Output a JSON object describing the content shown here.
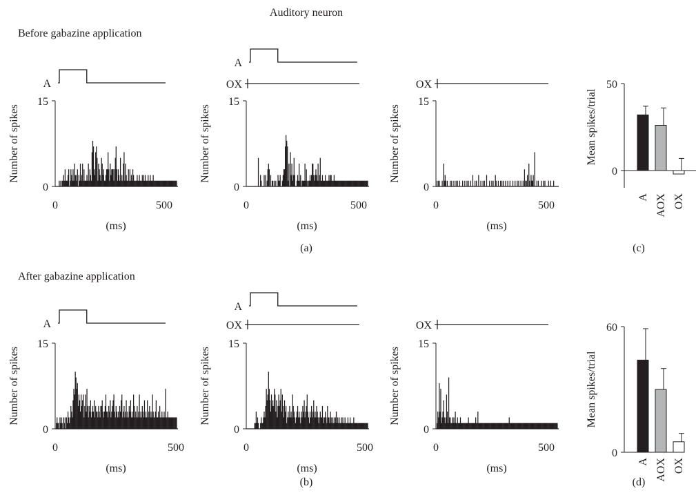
{
  "figure": {
    "title": "Auditory neuron",
    "row_titles": [
      "Before gabazine application",
      "After gabazine application"
    ],
    "panel_labels": [
      "(a)",
      "(c)",
      "(b)",
      "(d)"
    ]
  },
  "chart_data": [
    {
      "id": "a1",
      "type": "bar",
      "row": "Before gabazine application",
      "panel": "(a)",
      "stimulus_lines": [
        "A"
      ],
      "xlabel": "(ms)",
      "ylabel": "Number of spikes",
      "xlim": [
        0,
        500
      ],
      "ylim": [
        0,
        15
      ],
      "xticks": [
        0,
        500
      ],
      "yticks": [
        0,
        15
      ],
      "bin_ms": 3,
      "values": [
        0,
        0,
        0,
        0,
        0,
        1,
        0,
        1,
        0,
        1,
        1,
        2,
        1,
        3,
        1,
        1,
        1,
        2,
        3,
        0,
        1,
        3,
        2,
        1,
        3,
        1,
        4,
        2,
        2,
        1,
        3,
        0,
        2,
        1,
        4,
        1,
        2,
        4,
        1,
        3,
        1,
        1,
        1,
        2,
        1,
        4,
        1,
        3,
        2,
        1,
        6,
        8,
        7,
        3,
        2,
        6,
        7,
        5,
        1,
        4,
        3,
        2,
        1,
        5,
        4,
        2,
        3,
        1,
        1,
        2,
        3,
        3,
        6,
        3,
        1,
        4,
        2,
        3,
        3,
        3,
        1,
        3,
        5,
        7,
        3,
        1,
        3,
        2,
        1,
        5,
        1,
        2,
        1,
        4,
        6,
        1,
        4,
        2,
        1,
        1,
        3,
        1,
        3,
        1,
        2,
        1,
        3,
        2,
        1,
        1,
        1,
        1,
        2,
        1,
        1,
        2,
        1,
        1,
        1,
        2,
        1,
        2,
        1,
        2,
        1,
        1,
        1,
        2,
        1,
        1,
        2,
        1,
        1,
        1,
        2,
        1,
        1,
        1,
        1,
        1,
        1,
        1,
        1,
        1,
        1,
        1,
        1,
        1,
        1,
        1,
        1,
        1,
        1,
        1,
        1,
        1,
        1,
        1,
        1,
        1,
        1,
        1,
        1,
        1,
        1,
        1,
        1
      ]
    },
    {
      "id": "a2",
      "type": "bar",
      "row": "Before gabazine application",
      "panel": "(a)",
      "stimulus_lines": [
        "A",
        "OX"
      ],
      "xlabel": "(ms)",
      "ylabel": "Number of spikes",
      "xlim": [
        0,
        500
      ],
      "ylim": [
        0,
        15
      ],
      "xticks": [
        0,
        500
      ],
      "yticks": [
        0,
        15
      ],
      "bin_ms": 3,
      "values": [
        0,
        0,
        0,
        0,
        0,
        0,
        0,
        0,
        0,
        0,
        0,
        0,
        0,
        0,
        0,
        0,
        5,
        0,
        0,
        2,
        1,
        0,
        0,
        0,
        2,
        0,
        2,
        0,
        1,
        3,
        4,
        3,
        0,
        2,
        0,
        1,
        1,
        0,
        1,
        0,
        1,
        0,
        0,
        2,
        1,
        1,
        2,
        0,
        0,
        1,
        2,
        3,
        3,
        7,
        9,
        8,
        7,
        1,
        4,
        0,
        6,
        2,
        4,
        1,
        2,
        5,
        2,
        0,
        0,
        1,
        2,
        1,
        4,
        1,
        2,
        0,
        1,
        1,
        1,
        1,
        4,
        1,
        3,
        1,
        0,
        1,
        1,
        2,
        1,
        2,
        4,
        4,
        2,
        1,
        2,
        3,
        2,
        1,
        4,
        1,
        2,
        5,
        1,
        1,
        2,
        1,
        1,
        1,
        2,
        1,
        1,
        1,
        1,
        2,
        1,
        2,
        2,
        1,
        1,
        1,
        2,
        1,
        1,
        1,
        1,
        1,
        1,
        1,
        1,
        1,
        1,
        1,
        1,
        1,
        1,
        1,
        1,
        1,
        1,
        1,
        1,
        1,
        1,
        1,
        1,
        1,
        1,
        1,
        1,
        1,
        1,
        1,
        1,
        1,
        1,
        1,
        1,
        1,
        1,
        1,
        1,
        1,
        1,
        1,
        1,
        1,
        1
      ]
    },
    {
      "id": "a3",
      "type": "bar",
      "row": "Before gabazine application",
      "panel": "(a)",
      "stimulus_lines": [
        "OX"
      ],
      "xlabel": "(ms)",
      "ylabel": "Number of spikes",
      "xlim": [
        0,
        500
      ],
      "ylim": [
        0,
        15
      ],
      "xticks": [
        0,
        500
      ],
      "yticks": [
        0,
        15
      ],
      "bin_ms": 3,
      "values": [
        0,
        1,
        0,
        1,
        1,
        0,
        0,
        0,
        1,
        0,
        4,
        1,
        2,
        1,
        0,
        1,
        0,
        0,
        0,
        1,
        0,
        1,
        0,
        0,
        1,
        0,
        0,
        1,
        0,
        1,
        0,
        0,
        1,
        0,
        0,
        0,
        1,
        0,
        0,
        1,
        0,
        0,
        1,
        0,
        1,
        0,
        0,
        1,
        0,
        0,
        2,
        0,
        0,
        1,
        0,
        1,
        0,
        0,
        2,
        0,
        0,
        1,
        0,
        0,
        1,
        0,
        1,
        0,
        0,
        2,
        0,
        0,
        0,
        1,
        0,
        0,
        1,
        0,
        1,
        0,
        0,
        2,
        1,
        0,
        0,
        1,
        0,
        0,
        1,
        0,
        1,
        0,
        1,
        0,
        0,
        1,
        0,
        0,
        1,
        0,
        0,
        1,
        0,
        0,
        0,
        1,
        0,
        0,
        1,
        0,
        0,
        1,
        0,
        1,
        0,
        0,
        1,
        0,
        0,
        1,
        0,
        3,
        1,
        0,
        1,
        2,
        0,
        4,
        1,
        0,
        2,
        1,
        1,
        2,
        0,
        6,
        0,
        0,
        1,
        0,
        1,
        0,
        0,
        0,
        1,
        0,
        0,
        1,
        0,
        1,
        0,
        0,
        0,
        0,
        1,
        0,
        0,
        1,
        0,
        0,
        0,
        1,
        0,
        0,
        0,
        0,
        0
      ]
    },
    {
      "id": "c",
      "type": "bar",
      "row": "Before gabazine application",
      "panel": "(c)",
      "ylabel": "Mean spikes/trial",
      "ylim": [
        -15,
        50
      ],
      "yticks": [
        0,
        50
      ],
      "categories": [
        "A",
        "AOX",
        "OX"
      ],
      "values": [
        32,
        26,
        -2
      ],
      "errors": [
        5,
        10,
        9
      ],
      "colors": [
        "#231f20",
        "#b5b6b8",
        "#ffffff"
      ]
    },
    {
      "id": "b1",
      "type": "bar",
      "row": "After gabazine application",
      "panel": "(b)",
      "stimulus_lines": [
        "A"
      ],
      "xlabel": "(ms)",
      "ylabel": "Number of spikes",
      "xlim": [
        0,
        500
      ],
      "ylim": [
        0,
        15
      ],
      "xticks": [
        0,
        500
      ],
      "yticks": [
        0,
        15
      ],
      "bin_ms": 3,
      "values": [
        0,
        1,
        2,
        1,
        1,
        0,
        2,
        1,
        2,
        1,
        0,
        2,
        1,
        2,
        0,
        2,
        1,
        3,
        2,
        1,
        2,
        4,
        3,
        2,
        5,
        7,
        6,
        10,
        9,
        7,
        8,
        4,
        6,
        5,
        3,
        6,
        4,
        5,
        6,
        2,
        4,
        6,
        3,
        7,
        4,
        2,
        4,
        3,
        5,
        2,
        3,
        4,
        3,
        5,
        2,
        4,
        3,
        3,
        2,
        4,
        3,
        2,
        4,
        4,
        5,
        3,
        2,
        3,
        4,
        6,
        3,
        3,
        2,
        4,
        3,
        5,
        2,
        3,
        4,
        5,
        6,
        3,
        2,
        4,
        3,
        2,
        3,
        2,
        4,
        3,
        5,
        6,
        2,
        3,
        4,
        2,
        3,
        5,
        2,
        3,
        2,
        4,
        3,
        5,
        2,
        3,
        2,
        6,
        4,
        2,
        3,
        2,
        4,
        2,
        3,
        6,
        2,
        3,
        2,
        4,
        3,
        2,
        5,
        2,
        3,
        2,
        5,
        2,
        3,
        4,
        2,
        3,
        2,
        6,
        3,
        2,
        2,
        3,
        5,
        2,
        2,
        3,
        2,
        4,
        2,
        2,
        3,
        2,
        2,
        3,
        2,
        7,
        2,
        2,
        3,
        2,
        2,
        2,
        2,
        2,
        2,
        2,
        2,
        2,
        2,
        2,
        2
      ]
    },
    {
      "id": "b2",
      "type": "bar",
      "row": "After gabazine application",
      "panel": "(b)",
      "stimulus_lines": [
        "A",
        "OX"
      ],
      "xlabel": "(ms)",
      "ylabel": "Number of spikes",
      "xlim": [
        0,
        500
      ],
      "ylim": [
        0,
        15
      ],
      "xticks": [
        0,
        500
      ],
      "yticks": [
        0,
        15
      ],
      "bin_ms": 3,
      "values": [
        0,
        0,
        0,
        0,
        0,
        0,
        0,
        0,
        0,
        0,
        0,
        1,
        1,
        3,
        1,
        2,
        1,
        0,
        0,
        1,
        2,
        1,
        1,
        2,
        3,
        2,
        4,
        7,
        5,
        6,
        10,
        7,
        5,
        3,
        6,
        4,
        5,
        4,
        7,
        6,
        3,
        5,
        2,
        4,
        6,
        4,
        5,
        7,
        3,
        6,
        4,
        2,
        5,
        3,
        4,
        1,
        2,
        3,
        2,
        4,
        2,
        3,
        2,
        6,
        4,
        3,
        2,
        1,
        2,
        3,
        4,
        2,
        3,
        2,
        1,
        3,
        2,
        4,
        3,
        5,
        2,
        3,
        4,
        6,
        3,
        2,
        1,
        3,
        2,
        4,
        2,
        3,
        5,
        2,
        3,
        2,
        4,
        3,
        2,
        1,
        2,
        3,
        2,
        2,
        4,
        2,
        1,
        2,
        3,
        2,
        1,
        4,
        2,
        2,
        1,
        3,
        2,
        1,
        2,
        1,
        2,
        1,
        2,
        3,
        1,
        2,
        1,
        2,
        1,
        1,
        2,
        1,
        2,
        1,
        1,
        2,
        1,
        1,
        1,
        2,
        1,
        1,
        2,
        1,
        1,
        1,
        1,
        2,
        1,
        1,
        1,
        1,
        1,
        1,
        1,
        1,
        1,
        1,
        1,
        1,
        1,
        1,
        1,
        1,
        1,
        1,
        1
      ]
    },
    {
      "id": "b3",
      "type": "bar",
      "row": "After gabazine application",
      "panel": "(b)",
      "stimulus_lines": [
        "OX"
      ],
      "xlabel": "(ms)",
      "ylabel": "Number of spikes",
      "xlim": [
        0,
        500
      ],
      "ylim": [
        0,
        15
      ],
      "xticks": [
        0,
        500
      ],
      "yticks": [
        0,
        15
      ],
      "bin_ms": 3,
      "values": [
        0,
        1,
        3,
        2,
        8,
        3,
        7,
        1,
        2,
        3,
        5,
        2,
        1,
        2,
        6,
        3,
        1,
        9,
        2,
        2,
        1,
        1,
        2,
        1,
        2,
        1,
        3,
        1,
        1,
        2,
        1,
        1,
        1,
        2,
        1,
        1,
        1,
        1,
        1,
        1,
        1,
        1,
        1,
        1,
        2,
        1,
        1,
        1,
        1,
        1,
        1,
        1,
        1,
        1,
        2,
        1,
        1,
        3,
        1,
        1,
        1,
        1,
        1,
        1,
        1,
        1,
        1,
        1,
        1,
        1,
        1,
        1,
        1,
        1,
        1,
        1,
        1,
        1,
        1,
        1,
        1,
        1,
        1,
        1,
        1,
        1,
        1,
        1,
        1,
        1,
        1,
        1,
        1,
        1,
        1,
        1,
        1,
        1,
        1,
        1,
        2,
        1,
        1,
        1,
        1,
        1,
        1,
        1,
        1,
        1,
        1,
        1,
        1,
        1,
        1,
        1,
        1,
        1,
        1,
        1,
        1,
        1,
        1,
        1,
        1,
        1,
        1,
        1,
        1,
        1,
        1,
        1,
        1,
        1,
        1,
        1,
        1,
        1,
        1,
        1,
        1,
        1,
        1,
        1,
        1,
        1,
        1,
        1,
        1,
        1,
        1,
        1,
        1,
        1,
        1,
        1,
        1,
        1,
        1,
        1,
        1,
        1,
        1,
        1,
        1,
        1,
        1
      ]
    },
    {
      "id": "d",
      "type": "bar",
      "row": "After gabazine application",
      "panel": "(d)",
      "ylabel": "Mean spikes/trial",
      "ylim": [
        0,
        60
      ],
      "yticks": [
        0,
        60
      ],
      "categories": [
        "A",
        "AOX",
        "OX"
      ],
      "values": [
        44,
        30,
        5
      ],
      "errors": [
        15,
        10,
        4
      ],
      "colors": [
        "#231f20",
        "#b5b6b8",
        "#ffffff"
      ]
    }
  ]
}
